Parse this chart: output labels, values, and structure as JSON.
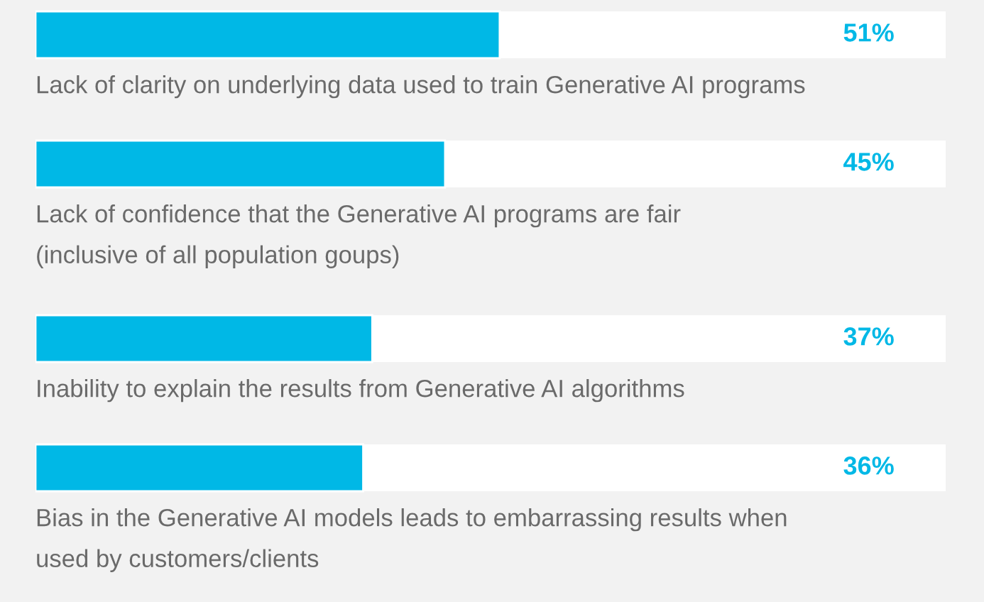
{
  "chart_data": {
    "type": "bar",
    "orientation": "horizontal",
    "categories": [
      "Lack of clarity on underlying data used to train Generative AI programs",
      "Lack of confidence that the Generative AI programs are fair\n(inclusive of all population goups)",
      "Inability to explain the results from Generative AI algorithms",
      "Bias in the Generative AI models leads to embarrassing results when\nused by customers/clients"
    ],
    "values": [
      51,
      45,
      37,
      36
    ],
    "value_labels": [
      "51%",
      "45%",
      "37%",
      "36%"
    ],
    "color": "#00b8e6",
    "xlim": [
      0,
      100
    ]
  }
}
